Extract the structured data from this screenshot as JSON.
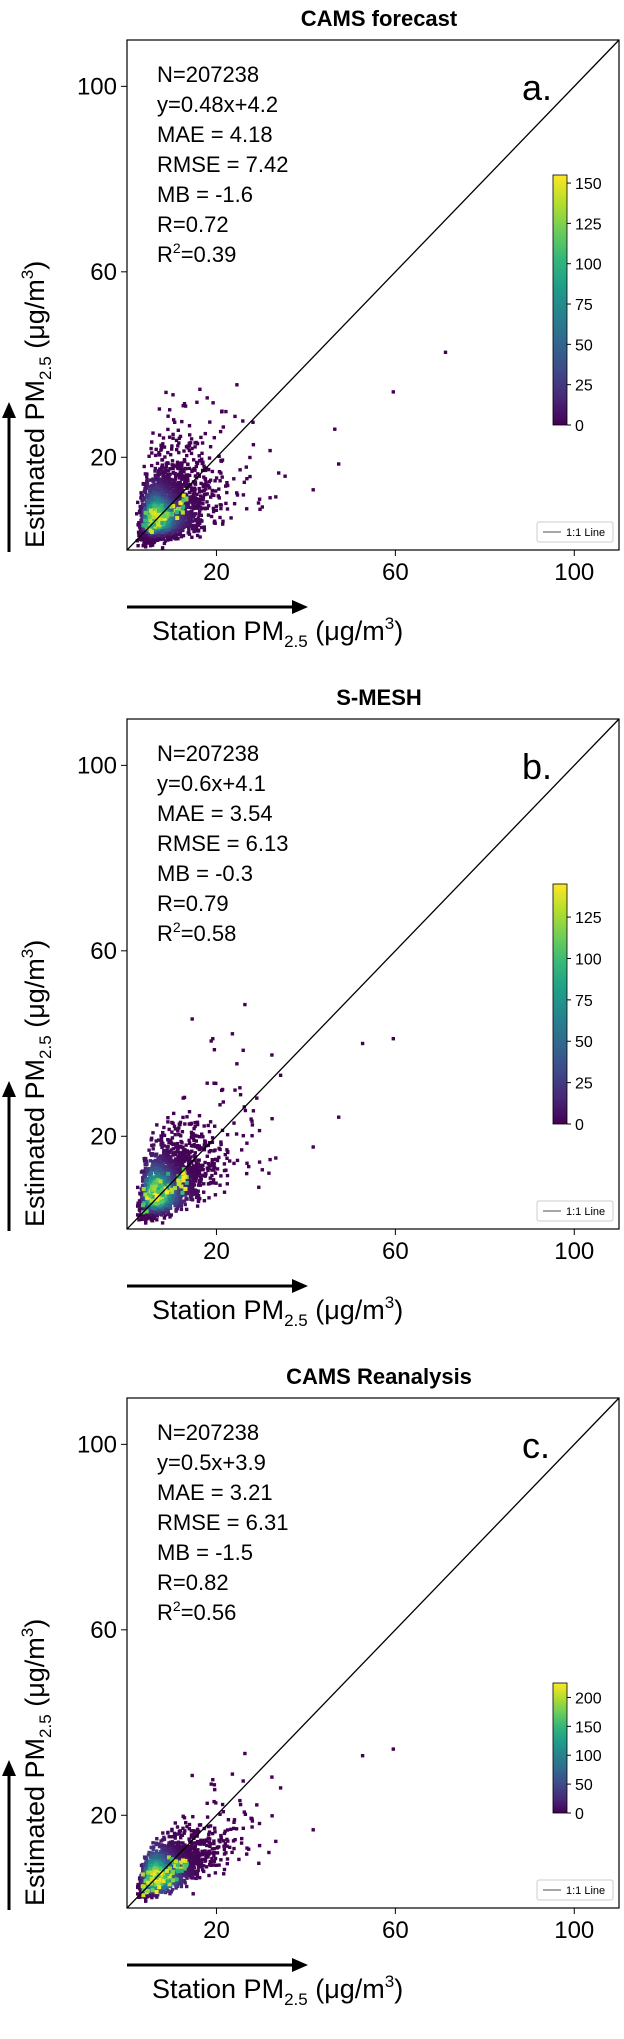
{
  "chart_data": [
    {
      "type": "scatter",
      "panel_label": "a.",
      "title": "CAMS forecast",
      "xlabel": {
        "main": "Station PM",
        "sub": "2.5",
        "unit": " (μg/m",
        "sup": "3",
        "close": ")"
      },
      "ylabel": {
        "main": "Estimated PM",
        "sub": "2.5",
        "unit": " (μg/m",
        "sup": "3",
        "close": ")"
      },
      "xlim": [
        0,
        110
      ],
      "ylim": [
        0,
        110
      ],
      "xticks": [
        20,
        60,
        100
      ],
      "yticks": [
        20,
        60,
        100
      ],
      "stats": [
        "N=207238",
        "y=0.48x+4.2",
        "MAE = 4.18",
        "RMSE = 7.42",
        "MB = -1.6",
        "R=0.72"
      ],
      "r2": {
        "base": "R",
        "sup": "2",
        "rest": "=0.39"
      },
      "fit": {
        "slope": 0.48,
        "intercept": 4.2
      },
      "spread": 1.0,
      "colorbar": {
        "min": 0,
        "max": 155,
        "ticks": [
          0,
          25,
          50,
          75,
          100,
          125,
          150
        ],
        "colormap": "viridis"
      },
      "legend": {
        "label": "1:1 Line",
        "placement": "bottom-right"
      },
      "reference_line": "1:1"
    },
    {
      "type": "scatter",
      "panel_label": "b.",
      "title": "S-MESH",
      "xlabel": {
        "main": "Station PM",
        "sub": "2.5",
        "unit": " (μg/m",
        "sup": "3",
        "close": ")"
      },
      "ylabel": {
        "main": "Estimated PM",
        "sub": "2.5",
        "unit": " (μg/m",
        "sup": "3",
        "close": ")"
      },
      "xlim": [
        0,
        110
      ],
      "ylim": [
        0,
        110
      ],
      "xticks": [
        20,
        60,
        100
      ],
      "yticks": [
        20,
        60,
        100
      ],
      "stats": [
        "N=207238",
        "y=0.6x+4.1",
        "MAE = 3.54",
        "RMSE = 6.13",
        "MB = -0.3",
        "R=0.79"
      ],
      "r2": {
        "base": "R",
        "sup": "2",
        "rest": "=0.58"
      },
      "fit": {
        "slope": 0.6,
        "intercept": 4.1
      },
      "spread": 0.8,
      "colorbar": {
        "min": 0,
        "max": 145,
        "ticks": [
          0,
          25,
          50,
          75,
          100,
          125
        ],
        "colormap": "viridis"
      },
      "legend": {
        "label": "1:1 Line",
        "placement": "bottom-right"
      },
      "reference_line": "1:1"
    },
    {
      "type": "scatter",
      "panel_label": "c.",
      "title": "CAMS Reanalysis",
      "xlabel": {
        "main": "Station PM",
        "sub": "2.5",
        "unit": " (μg/m",
        "sup": "3",
        "close": ")"
      },
      "ylabel": {
        "main": "Estimated PM",
        "sub": "2.5",
        "unit": " (μg/m",
        "sup": "3",
        "close": ")"
      },
      "xlim": [
        0,
        110
      ],
      "ylim": [
        0,
        110
      ],
      "xticks": [
        20,
        60,
        100
      ],
      "yticks": [
        20,
        60,
        100
      ],
      "stats": [
        "N=207238",
        "y=0.5x+3.9",
        "MAE = 3.21",
        "RMSE = 6.31",
        "MB = -1.5",
        "R=0.82"
      ],
      "r2": {
        "base": "R",
        "sup": "2",
        "rest": "=0.56"
      },
      "fit": {
        "slope": 0.5,
        "intercept": 3.9
      },
      "spread": 0.6,
      "colorbar": {
        "min": 0,
        "max": 225,
        "ticks": [
          0,
          50,
          100,
          150,
          200
        ],
        "colormap": "viridis"
      },
      "legend": {
        "label": "1:1 Line",
        "placement": "bottom-right"
      },
      "reference_line": "1:1"
    }
  ]
}
